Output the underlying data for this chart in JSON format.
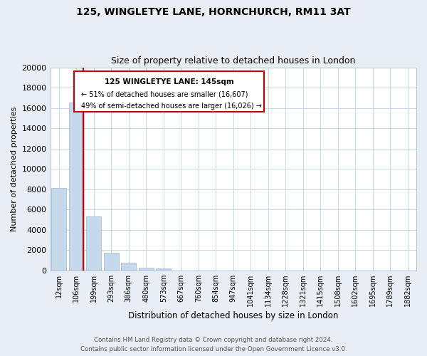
{
  "title": "125, WINGLETYE LANE, HORNCHURCH, RM11 3AT",
  "subtitle": "Size of property relative to detached houses in London",
  "xlabel": "Distribution of detached houses by size in London",
  "ylabel": "Number of detached properties",
  "bar_color": "#c5d8ec",
  "bar_edge_color": "#a8c0d8",
  "categories": [
    "12sqm",
    "106sqm",
    "199sqm",
    "293sqm",
    "386sqm",
    "480sqm",
    "573sqm",
    "667sqm",
    "760sqm",
    "854sqm",
    "947sqm",
    "1041sqm",
    "1134sqm",
    "1228sqm",
    "1321sqm",
    "1415sqm",
    "1508sqm",
    "1602sqm",
    "1695sqm",
    "1789sqm",
    "1882sqm"
  ],
  "values": [
    8100,
    16500,
    5300,
    1750,
    750,
    280,
    200,
    0,
    0,
    0,
    0,
    0,
    0,
    0,
    0,
    0,
    0,
    0,
    0,
    0,
    0
  ],
  "ylim": [
    0,
    20000
  ],
  "yticks": [
    0,
    2000,
    4000,
    6000,
    8000,
    10000,
    12000,
    14000,
    16000,
    18000,
    20000
  ],
  "vline_x_idx": 1.38,
  "vline_color": "#cc0000",
  "annotation_line1": "125 WINGLETYE LANE: 145sqm",
  "annotation_line2": "← 51% of detached houses are smaller (16,607)",
  "annotation_line3": "49% of semi-detached houses are larger (16,026) →",
  "annotation_box_color": "#ffffff",
  "annotation_box_edge_color": "#cc0000",
  "footer1": "Contains HM Land Registry data © Crown copyright and database right 2024.",
  "footer2": "Contains public sector information licensed under the Open Government Licence v3.0.",
  "background_color": "#e8eef4",
  "plot_background_color": "#ffffff",
  "grid_color": "#c8d8e8"
}
